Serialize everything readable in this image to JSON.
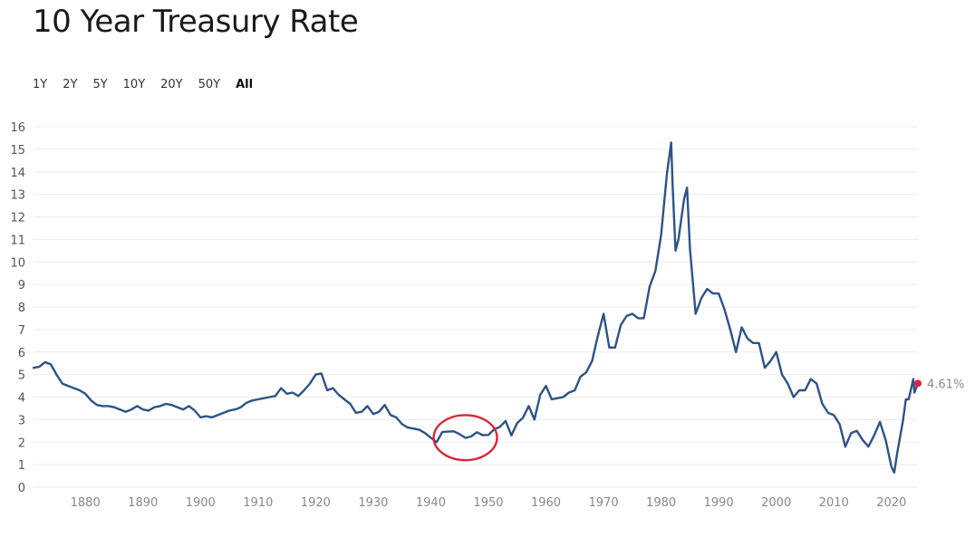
{
  "page": {
    "title": "10 Year Treasury Rate"
  },
  "range_selector": {
    "options": [
      "1Y",
      "2Y",
      "5Y",
      "10Y",
      "20Y",
      "50Y",
      "All"
    ],
    "selected": "All"
  },
  "colors": {
    "line": "#2e5385",
    "gridline": "#ececec",
    "last_point": "#d9263a",
    "annotation": "#d9263a"
  },
  "chart_data": {
    "type": "line",
    "title": "10 Year Treasury Rate",
    "xlabel": "",
    "ylabel": "",
    "xlim": [
      1871,
      2024.6
    ],
    "ylim": [
      0,
      16
    ],
    "grid": true,
    "y_ticks": [
      0,
      1,
      2,
      3,
      4,
      5,
      6,
      7,
      8,
      9,
      10,
      11,
      12,
      13,
      14,
      15,
      16
    ],
    "x_ticks": [
      1880,
      1890,
      1900,
      1910,
      1920,
      1930,
      1940,
      1950,
      1960,
      1970,
      1980,
      1990,
      2000,
      2010,
      2020
    ],
    "last_value_label": "4.61%",
    "annotation": {
      "type": "circle",
      "x_range": [
        1940.5,
        1951.5
      ],
      "y_range": [
        1.2,
        3.2
      ]
    },
    "series": [
      {
        "x": [
          1871,
          1872,
          1873,
          1874,
          1875,
          1876,
          1877,
          1878,
          1879,
          1880,
          1881,
          1882,
          1883,
          1884,
          1885,
          1886,
          1887,
          1888,
          1889,
          1890,
          1891,
          1892,
          1893,
          1894,
          1895,
          1896,
          1897,
          1898,
          1899,
          1900,
          1901,
          1902,
          1903,
          1904,
          1905,
          1906,
          1907,
          1908,
          1909,
          1910,
          1911,
          1912,
          1913,
          1914,
          1915,
          1916,
          1917,
          1918,
          1919,
          1920,
          1921,
          1922,
          1923,
          1924,
          1925,
          1926,
          1927,
          1928,
          1929,
          1930,
          1931,
          1932,
          1933,
          1934,
          1935,
          1936,
          1937,
          1938,
          1939,
          1940,
          1941,
          1942,
          1943,
          1944,
          1945,
          1946,
          1947,
          1948,
          1949,
          1950,
          1951,
          1952,
          1953,
          1954,
          1955,
          1956,
          1957,
          1958,
          1959,
          1960,
          1961,
          1962,
          1963,
          1964,
          1965,
          1966,
          1967,
          1968,
          1969,
          1970,
          1971,
          1972,
          1973,
          1974,
          1975,
          1976,
          1977,
          1978,
          1979,
          1980,
          1981,
          1981.75,
          1982,
          1982.5,
          1983,
          1984,
          1984.5,
          1985,
          1986,
          1987,
          1988,
          1989,
          1990,
          1991,
          1992,
          1993,
          1994,
          1995,
          1996,
          1997,
          1998,
          1999,
          2000,
          2001,
          2002,
          2003,
          2004,
          2005,
          2006,
          2007,
          2008,
          2009,
          2010,
          2011,
          2012,
          2013,
          2014,
          2015,
          2016,
          2017,
          2018,
          2019,
          2020,
          2020.5,
          2021,
          2022,
          2022.5,
          2023,
          2023.8,
          2024,
          2024.6
        ],
        "y": [
          5.3,
          5.35,
          5.55,
          5.45,
          5.0,
          4.6,
          4.5,
          4.4,
          4.3,
          4.15,
          3.85,
          3.65,
          3.6,
          3.6,
          3.55,
          3.45,
          3.35,
          3.45,
          3.6,
          3.45,
          3.4,
          3.55,
          3.6,
          3.7,
          3.65,
          3.55,
          3.45,
          3.6,
          3.4,
          3.1,
          3.15,
          3.1,
          3.2,
          3.3,
          3.4,
          3.45,
          3.55,
          3.75,
          3.85,
          3.9,
          3.95,
          4.0,
          4.05,
          4.4,
          4.15,
          4.2,
          4.05,
          4.3,
          4.6,
          5.0,
          5.05,
          4.3,
          4.4,
          4.1,
          3.9,
          3.7,
          3.3,
          3.35,
          3.6,
          3.25,
          3.35,
          3.65,
          3.2,
          3.1,
          2.8,
          2.65,
          2.6,
          2.55,
          2.4,
          2.2,
          2.0,
          2.45,
          2.47,
          2.48,
          2.35,
          2.19,
          2.25,
          2.44,
          2.31,
          2.32,
          2.57,
          2.68,
          2.94,
          2.3,
          2.85,
          3.08,
          3.6,
          3.0,
          4.1,
          4.5,
          3.9,
          3.95,
          4.0,
          4.2,
          4.3,
          4.9,
          5.1,
          5.6,
          6.7,
          7.7,
          6.2,
          6.2,
          7.2,
          7.6,
          7.7,
          7.5,
          7.5,
          8.9,
          9.6,
          11.2,
          13.9,
          15.3,
          13.4,
          10.5,
          11.0,
          12.8,
          13.3,
          10.6,
          7.7,
          8.4,
          8.8,
          8.6,
          8.6,
          7.9,
          7.0,
          6.0,
          7.1,
          6.6,
          6.4,
          6.4,
          5.3,
          5.6,
          6.0,
          5.0,
          4.6,
          4.0,
          4.3,
          4.3,
          4.8,
          4.6,
          3.7,
          3.3,
          3.2,
          2.8,
          1.8,
          2.4,
          2.5,
          2.1,
          1.8,
          2.3,
          2.9,
          2.1,
          0.9,
          0.65,
          1.5,
          2.95,
          3.9,
          3.9,
          4.8,
          4.2,
          4.61
        ]
      }
    ]
  }
}
